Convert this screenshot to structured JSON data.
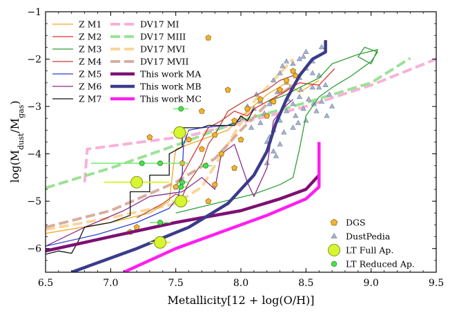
{
  "chart_data": {
    "type": "line",
    "xlabel": "Metallicity[12 + log(O/H)]",
    "ylabel": "log(M_dust/M_gas)",
    "ylabel_main": "log(M",
    "ylabel_sub1": "dust",
    "ylabel_mid": "/M",
    "ylabel_sub2": "gas",
    "ylabel_close": ")",
    "xlim": [
      6.5,
      9.5
    ],
    "ylim": [
      -6.5,
      -1.0
    ],
    "xticks": [
      6.5,
      7.0,
      7.5,
      8.0,
      8.5,
      9.0,
      9.5
    ],
    "xtick_labels": [
      "6.5",
      "7.0",
      "7.5",
      "8.0",
      "8.5",
      "9.0",
      "9.5"
    ],
    "yticks": [
      -6,
      -5,
      -4,
      -3,
      -2,
      -1
    ],
    "ytick_labels": [
      "−6",
      "−5",
      "−4",
      "−3",
      "−2",
      "−1"
    ],
    "legend_left": [
      {
        "label": "Z M1",
        "color": "#f5a623",
        "width": 1.3,
        "alpha": 1,
        "dash": ""
      },
      {
        "label": "Z M2",
        "color": "#e0312b",
        "width": 1.3,
        "alpha": 1,
        "dash": ""
      },
      {
        "label": "Z M3",
        "color": "#2e9e33",
        "width": 1.3,
        "alpha": 1,
        "dash": ""
      },
      {
        "label": "Z M4",
        "color": "#b5453a",
        "width": 1.3,
        "alpha": 1,
        "dash": ""
      },
      {
        "label": "Z M5",
        "color": "#2b3fd1",
        "width": 1.3,
        "alpha": 1,
        "dash": ""
      },
      {
        "label": "Z M6",
        "color": "#8b2a8b",
        "width": 1.3,
        "alpha": 1,
        "dash": ""
      },
      {
        "label": "Z M7",
        "color": "#111111",
        "width": 1.3,
        "alpha": 1,
        "dash": ""
      }
    ],
    "legend_right": [
      {
        "label": "DV17 MI",
        "color": "#f7a8d4",
        "width": 4,
        "alpha": 0.9,
        "dash": "14,6"
      },
      {
        "label": "DV17 MIII",
        "color": "#8ee08a",
        "width": 4,
        "alpha": 0.9,
        "dash": "14,6"
      },
      {
        "label": "DV17 MVI",
        "color": "#fbd08e",
        "width": 4,
        "alpha": 0.9,
        "dash": "14,6"
      },
      {
        "label": "DV17 MVII",
        "color": "#d4a594",
        "width": 4,
        "alpha": 0.9,
        "dash": "14,6"
      },
      {
        "label": "This work MA",
        "color": "#7d1073",
        "width": 4.5,
        "alpha": 1,
        "dash": ""
      },
      {
        "label": "This work MB",
        "color": "#3b3b8c",
        "width": 4.5,
        "alpha": 1,
        "dash": ""
      },
      {
        "label": "This work MC",
        "color": "#ff1ff1",
        "width": 4.5,
        "alpha": 1,
        "dash": ""
      }
    ],
    "legend_markers": [
      {
        "label": "DGS",
        "marker": "pentagon",
        "color": "#f2b233"
      },
      {
        "label": "DustPedia",
        "marker": "triangle",
        "color": "#a8b4cc"
      },
      {
        "label": "LT Full Ap.",
        "marker": "bigcircle",
        "color": "#d8f531"
      },
      {
        "label": "LT Reduced Ap.",
        "marker": "smallcircle",
        "color": "#4be04b"
      }
    ],
    "series": [
      {
        "name": "DV17 MI",
        "color": "#f7a8d4",
        "width": 4,
        "alpha": 0.9,
        "dash": "14,6",
        "points": [
          [
            6.8,
            -4.6
          ],
          [
            6.82,
            -3.9
          ],
          [
            7.6,
            -3.62
          ],
          [
            8.5,
            -3.0
          ],
          [
            9.0,
            -2.55
          ],
          [
            9.5,
            -2.0
          ]
        ]
      },
      {
        "name": "DV17 MIII",
        "color": "#8ee08a",
        "width": 4,
        "alpha": 0.9,
        "dash": "14,6",
        "points": [
          [
            6.5,
            -4.72
          ],
          [
            7.0,
            -4.3
          ],
          [
            7.5,
            -3.82
          ],
          [
            8.0,
            -3.3
          ],
          [
            8.5,
            -2.92
          ],
          [
            9.0,
            -2.5
          ],
          [
            9.3,
            -1.98
          ]
        ]
      },
      {
        "name": "DV17 MVI",
        "color": "#fbd08e",
        "width": 4,
        "alpha": 0.9,
        "dash": "14,6",
        "points": [
          [
            6.5,
            -5.6
          ],
          [
            7.0,
            -5.35
          ],
          [
            7.5,
            -5.05
          ],
          [
            7.7,
            -4.7
          ],
          [
            7.9,
            -3.8
          ],
          [
            8.1,
            -2.9
          ],
          [
            8.3,
            -2.3
          ],
          [
            8.4,
            -2.0
          ]
        ]
      },
      {
        "name": "DV17 MVII",
        "color": "#d4a594",
        "width": 4,
        "alpha": 0.9,
        "dash": "14,6",
        "points": [
          [
            6.5,
            -5.55
          ],
          [
            7.0,
            -5.2
          ],
          [
            7.5,
            -4.6
          ],
          [
            7.8,
            -4.1
          ],
          [
            8.0,
            -3.5
          ],
          [
            8.2,
            -2.95
          ],
          [
            8.4,
            -2.55
          ]
        ]
      },
      {
        "name": "Z M1",
        "color": "#f5a623",
        "width": 1.3,
        "alpha": 1,
        "dash": "",
        "points": [
          [
            6.5,
            -5.68
          ],
          [
            7.0,
            -5.45
          ],
          [
            7.3,
            -5.25
          ],
          [
            7.45,
            -5.0
          ],
          [
            7.48,
            -4.3
          ],
          [
            7.5,
            -3.9
          ],
          [
            7.55,
            -3.85
          ],
          [
            7.9,
            -3.5
          ],
          [
            8.05,
            -3.1
          ],
          [
            8.2,
            -2.75
          ],
          [
            8.35,
            -2.5
          ],
          [
            8.45,
            -2.7
          ],
          [
            8.6,
            -2.45
          ]
        ]
      },
      {
        "name": "Z M2",
        "color": "#e0312b",
        "width": 1.3,
        "alpha": 1,
        "dash": "",
        "points": [
          [
            7.5,
            -4.7
          ],
          [
            7.6,
            -4.2
          ],
          [
            7.7,
            -3.7
          ],
          [
            7.75,
            -3.45
          ],
          [
            7.85,
            -3.3
          ],
          [
            7.95,
            -3.1
          ],
          [
            8.05,
            -3.2
          ],
          [
            8.1,
            -3.05
          ],
          [
            8.2,
            -2.9
          ],
          [
            8.3,
            -2.75
          ],
          [
            8.45,
            -2.5
          ],
          [
            8.6,
            -2.55
          ],
          [
            8.72,
            -2.2
          ]
        ]
      },
      {
        "name": "Z M3",
        "color": "#2e9e33",
        "width": 1.3,
        "alpha": 1,
        "dash": "",
        "points": [
          [
            7.5,
            -5.25
          ],
          [
            7.8,
            -5.05
          ],
          [
            8.1,
            -4.85
          ],
          [
            8.3,
            -4.65
          ],
          [
            8.4,
            -4.5
          ],
          [
            8.45,
            -3.9
          ],
          [
            8.5,
            -3.2
          ],
          [
            8.6,
            -2.8
          ],
          [
            8.7,
            -2.6
          ],
          [
            8.85,
            -2.35
          ],
          [
            8.95,
            -2.15
          ],
          [
            9.0,
            -2.05
          ],
          [
            9.05,
            -1.85
          ],
          [
            8.95,
            -1.75
          ],
          [
            8.9,
            -1.95
          ],
          [
            9.0,
            -2.1
          ],
          [
            9.05,
            -1.8
          ],
          [
            8.9,
            -1.9
          ],
          [
            8.7,
            -2.1
          ],
          [
            8.6,
            -2.4
          ],
          [
            8.45,
            -2.6
          ],
          [
            8.35,
            -2.75
          ],
          [
            8.2,
            -2.9
          ]
        ]
      },
      {
        "name": "Z M4",
        "color": "#b5453a",
        "width": 1.3,
        "alpha": 1,
        "dash": "",
        "points": [
          [
            7.2,
            -5.35
          ],
          [
            7.4,
            -5.05
          ],
          [
            7.5,
            -4.85
          ],
          [
            7.55,
            -4.9
          ],
          [
            7.6,
            -4.6
          ],
          [
            7.7,
            -4.2
          ],
          [
            7.75,
            -3.8
          ],
          [
            7.8,
            -3.6
          ],
          [
            7.9,
            -3.1
          ],
          [
            8.05,
            -2.85
          ],
          [
            8.2,
            -2.65
          ],
          [
            8.3,
            -2.45
          ],
          [
            8.4,
            -2.35
          ]
        ]
      },
      {
        "name": "Z M5",
        "color": "#2b3fd1",
        "width": 1.3,
        "alpha": 1,
        "dash": "",
        "points": [
          [
            6.5,
            -5.95
          ],
          [
            6.9,
            -5.7
          ],
          [
            7.2,
            -5.45
          ],
          [
            7.45,
            -5.15
          ],
          [
            7.52,
            -4.9
          ],
          [
            7.55,
            -4.4
          ],
          [
            7.56,
            -3.8
          ],
          [
            7.6,
            -3.5
          ],
          [
            7.7,
            -3.45
          ],
          [
            7.9,
            -3.4
          ],
          [
            8.0,
            -3.3
          ]
        ]
      },
      {
        "name": "Z M6",
        "color": "#8b2a8b",
        "width": 1.3,
        "alpha": 1,
        "dash": "",
        "points": [
          [
            6.5,
            -5.95
          ],
          [
            6.8,
            -5.55
          ],
          [
            7.1,
            -5.2
          ],
          [
            7.3,
            -4.9
          ],
          [
            7.55,
            -4.8
          ],
          [
            7.7,
            -4.5
          ],
          [
            7.8,
            -4.75
          ],
          [
            7.85,
            -4.0
          ],
          [
            7.95,
            -3.8
          ],
          [
            8.05,
            -4.6
          ],
          [
            8.1,
            -4.9
          ],
          [
            8.2,
            -4.3
          ],
          [
            8.25,
            -3.3
          ],
          [
            8.32,
            -3.05
          ],
          [
            8.4,
            -2.85
          ]
        ]
      },
      {
        "name": "Z M7",
        "color": "#111111",
        "width": 1.3,
        "alpha": 1,
        "dash": "",
        "points": [
          [
            6.5,
            -6.12
          ],
          [
            6.6,
            -6.05
          ],
          [
            6.7,
            -6.1
          ],
          [
            6.75,
            -5.85
          ],
          [
            6.8,
            -5.55
          ],
          [
            7.0,
            -5.45
          ],
          [
            7.15,
            -5.3
          ],
          [
            7.15,
            -4.8
          ],
          [
            7.3,
            -4.8
          ],
          [
            7.3,
            -4.45
          ],
          [
            7.45,
            -4.45
          ],
          [
            7.45,
            -4.0
          ],
          [
            7.55,
            -3.85
          ],
          [
            7.55,
            -3.45
          ],
          [
            7.7,
            -3.45
          ],
          [
            7.75,
            -3.4
          ],
          [
            7.95,
            -3.4
          ],
          [
            8.0,
            -3.2
          ],
          [
            8.05,
            -3.3
          ],
          [
            8.1,
            -3.05
          ]
        ]
      },
      {
        "name": "This work MA",
        "color": "#7d1073",
        "width": 4.5,
        "alpha": 1,
        "dash": "",
        "points": [
          [
            6.5,
            -6.05
          ],
          [
            7.0,
            -5.75
          ],
          [
            7.5,
            -5.45
          ],
          [
            8.0,
            -5.2
          ],
          [
            8.3,
            -4.95
          ],
          [
            8.5,
            -4.75
          ],
          [
            8.6,
            -4.45
          ]
        ]
      },
      {
        "name": "This work MB",
        "color": "#3b3b8c",
        "width": 4.5,
        "alpha": 1,
        "dash": "",
        "points": [
          [
            6.7,
            -6.5
          ],
          [
            7.2,
            -6.0
          ],
          [
            7.6,
            -5.55
          ],
          [
            7.9,
            -5.05
          ],
          [
            8.1,
            -4.45
          ],
          [
            8.2,
            -3.95
          ],
          [
            8.27,
            -3.35
          ],
          [
            8.35,
            -2.85
          ],
          [
            8.45,
            -2.35
          ],
          [
            8.55,
            -2.0
          ],
          [
            8.65,
            -1.85
          ],
          [
            8.65,
            -1.6
          ]
        ]
      },
      {
        "name": "This work MC",
        "color": "#ff1ff1",
        "width": 4.5,
        "alpha": 1,
        "dash": "",
        "points": [
          [
            7.1,
            -6.5
          ],
          [
            7.5,
            -6.0
          ],
          [
            7.9,
            -5.6
          ],
          [
            8.2,
            -5.3
          ],
          [
            8.5,
            -4.95
          ],
          [
            8.6,
            -4.7
          ],
          [
            8.6,
            -3.75
          ]
        ]
      }
    ],
    "dgs_points": [
      [
        7.75,
        -1.55
      ],
      [
        7.9,
        -2.65
      ],
      [
        8.15,
        -2.85
      ],
      [
        8.3,
        -2.65
      ],
      [
        8.35,
        -2.45
      ],
      [
        8.4,
        -2.25
      ],
      [
        8.25,
        -2.9
      ],
      [
        7.7,
        -3.1
      ],
      [
        7.95,
        -3.3
      ],
      [
        8.05,
        -3.05
      ],
      [
        7.6,
        -3.7
      ],
      [
        7.7,
        -3.9
      ],
      [
        7.85,
        -4.0
      ],
      [
        7.95,
        -4.3
      ],
      [
        7.55,
        -4.2
      ],
      [
        7.8,
        -4.65
      ],
      [
        7.5,
        -4.7
      ],
      [
        7.75,
        -5.0
      ],
      [
        7.2,
        -5.55
      ],
      [
        7.15,
        -5.65
      ],
      [
        7.3,
        -3.65
      ],
      [
        8.0,
        -3.7
      ],
      [
        8.2,
        -3.2
      ],
      [
        8.42,
        -2.35
      ],
      [
        7.8,
        -3.6
      ]
    ],
    "dustpedia_points": [
      [
        8.3,
        -2.3
      ],
      [
        8.35,
        -2.5
      ],
      [
        8.4,
        -2.1
      ],
      [
        8.45,
        -2.4
      ],
      [
        8.5,
        -2.2
      ],
      [
        8.55,
        -2.6
      ],
      [
        8.6,
        -2.35
      ],
      [
        8.62,
        -1.75
      ],
      [
        8.5,
        -1.85
      ],
      [
        8.45,
        -2.8
      ],
      [
        8.4,
        -2.95
      ],
      [
        8.35,
        -3.1
      ],
      [
        8.3,
        -3.3
      ],
      [
        8.25,
        -3.5
      ],
      [
        8.2,
        -3.75
      ],
      [
        8.25,
        -3.95
      ],
      [
        8.15,
        -3.35
      ],
      [
        8.1,
        -3.05
      ],
      [
        8.28,
        -2.7
      ],
      [
        8.38,
        -2.6
      ],
      [
        8.48,
        -3.05
      ],
      [
        8.52,
        -2.85
      ],
      [
        8.58,
        -3.1
      ],
      [
        8.62,
        -2.9
      ],
      [
        8.65,
        -2.55
      ],
      [
        8.68,
        -2.75
      ],
      [
        8.42,
        -3.2
      ],
      [
        8.33,
        -3.55
      ],
      [
        8.22,
        -2.95
      ],
      [
        8.18,
        -3.15
      ],
      [
        8.12,
        -2.75
      ],
      [
        8.05,
        -3.0
      ],
      [
        8.0,
        -3.25
      ],
      [
        8.27,
        -4.05
      ],
      [
        8.2,
        -4.2
      ],
      [
        8.3,
        -3.8
      ],
      [
        8.45,
        -2.0
      ],
      [
        8.55,
        -2.05
      ],
      [
        8.36,
        -2.85
      ],
      [
        8.46,
        -2.65
      ],
      [
        8.56,
        -2.95
      ],
      [
        8.66,
        -3.2
      ],
      [
        8.32,
        -2.15
      ],
      [
        8.4,
        -3.45
      ],
      [
        8.5,
        -3.3
      ],
      [
        8.6,
        -2.6
      ],
      [
        8.25,
        -2.45
      ],
      [
        8.15,
        -2.9
      ],
      [
        8.08,
        -3.45
      ],
      [
        8.55,
        -2.3
      ],
      [
        8.7,
        -3.0
      ],
      [
        8.48,
        -1.95
      ],
      [
        8.35,
        -2.05
      ],
      [
        8.44,
        -3.35
      ],
      [
        8.22,
        -3.65
      ]
    ],
    "lt_full": [
      [
        7.53,
        -3.55
      ],
      [
        7.2,
        -4.6
      ],
      [
        7.54,
        -5.0
      ],
      [
        7.38,
        -5.87
      ]
    ],
    "lt_full_err": [
      [
        7.46,
        7.6
      ],
      [
        6.95,
        7.45
      ],
      [
        7.47,
        7.61
      ],
      [
        7.3,
        7.46
      ]
    ],
    "lt_reduced": [
      [
        7.54,
        -3.05
      ],
      [
        7.24,
        -4.2
      ],
      [
        7.38,
        -4.2
      ],
      [
        7.54,
        -4.7
      ],
      [
        7.55,
        -4.6
      ],
      [
        7.38,
        -5.45
      ],
      [
        7.73,
        -4.25
      ]
    ],
    "lt_reduced_err": [
      [
        7.48,
        7.6
      ],
      [
        6.85,
        7.6
      ],
      [
        7.3,
        7.46
      ],
      [
        7.5,
        7.58
      ],
      [
        7.5,
        7.6
      ],
      [
        7.3,
        7.46
      ],
      [
        7.68,
        7.78
      ]
    ]
  }
}
